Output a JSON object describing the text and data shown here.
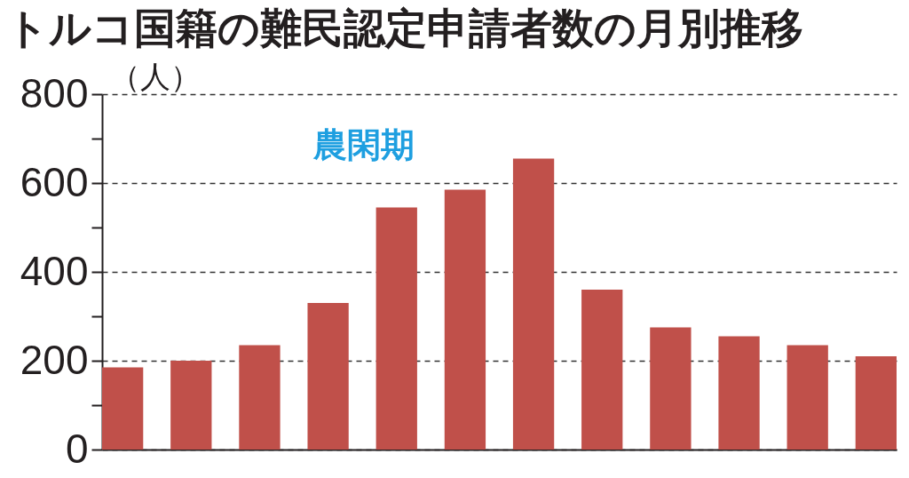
{
  "chart_data": {
    "type": "bar",
    "title": "トルコ国籍の難民認定申請者数の月別推移",
    "ylabel": "（人）",
    "annotations": [
      "農閑期"
    ],
    "categories": [
      null,
      null,
      null,
      null,
      null,
      null,
      null,
      null,
      null,
      null,
      null,
      null
    ],
    "values": [
      185,
      200,
      235,
      330,
      545,
      585,
      655,
      360,
      275,
      255,
      235,
      210
    ],
    "color": "#c0504a",
    "ylim": [
      0,
      800
    ],
    "yticks": [
      0,
      {
        "value": 100,
        "label": null
      },
      200,
      {
        "value": 300,
        "label": null
      },
      400,
      {
        "value": 500,
        "label": null
      },
      600,
      {
        "value": 700,
        "label": null
      },
      800
    ],
    "grid": "y",
    "tick_labels": "y"
  }
}
